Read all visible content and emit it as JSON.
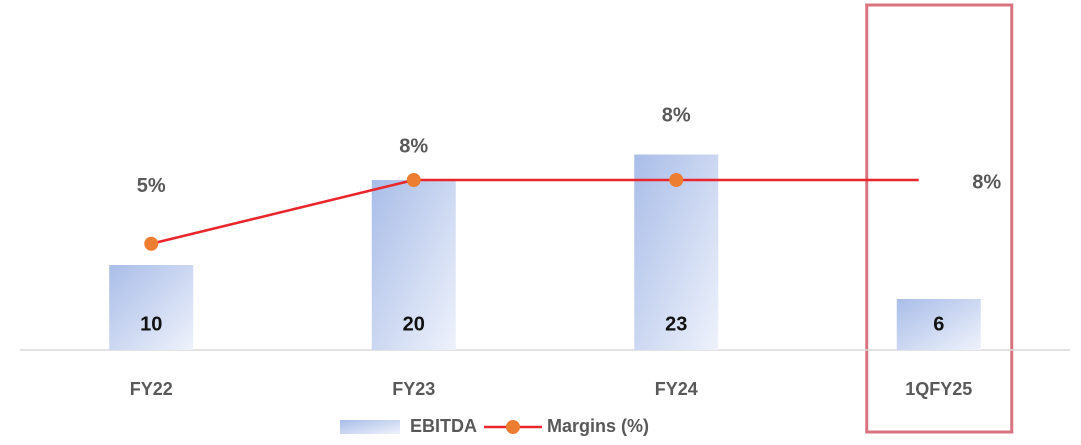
{
  "chart_data": {
    "type": "bar-line",
    "categories": [
      "FY22",
      "FY23",
      "FY24",
      "1QFY25"
    ],
    "series": [
      {
        "name": "EBITDA",
        "type": "bar",
        "color": "#b4c6ea",
        "values": [
          10,
          20,
          23,
          6
        ]
      },
      {
        "name": "Margins (%)",
        "type": "line",
        "axis": "y2",
        "color": "#e8262b",
        "marker_color": "#ed7d31",
        "values": [
          5,
          8,
          8,
          8
        ],
        "value_labels": [
          "5%",
          "8%",
          "8%",
          "8%"
        ]
      }
    ],
    "ylim": [
      0,
      40
    ],
    "y2lim": [
      0,
      16
    ],
    "grid": false,
    "legend": "bottom",
    "highlight_category": 3,
    "highlight_color": "#d9737f"
  }
}
